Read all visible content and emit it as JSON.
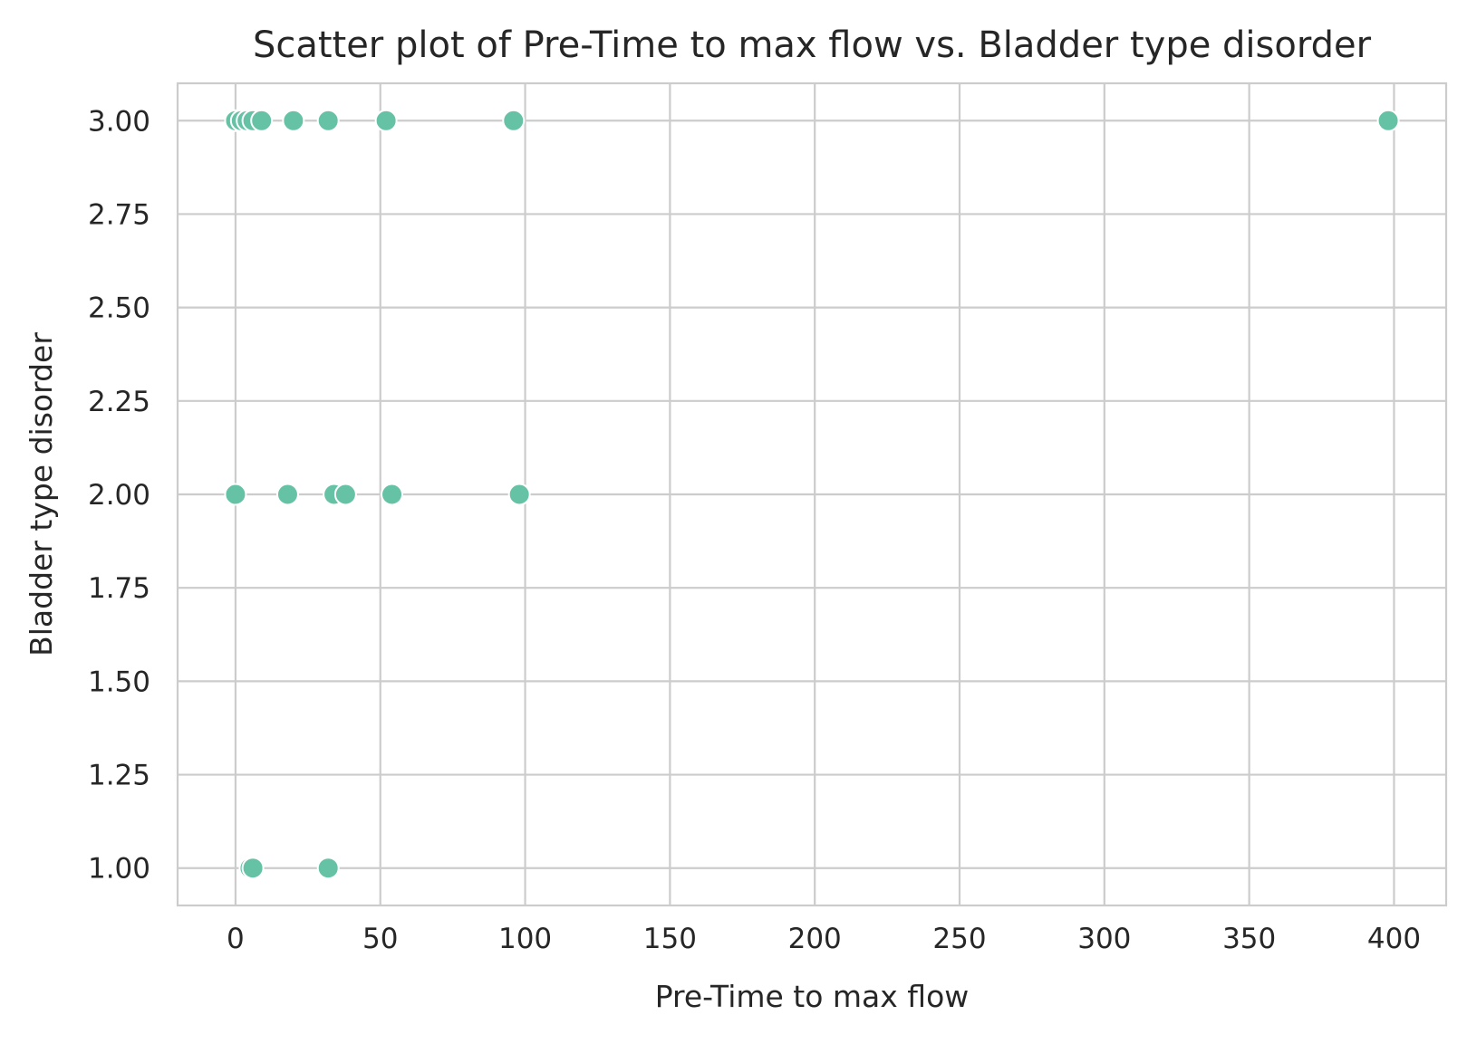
{
  "chart_data": {
    "type": "scatter",
    "title": "Scatter plot of Pre-Time to max flow vs. Bladder type disorder",
    "xlabel": "Pre-Time to max flow",
    "ylabel": "Bladder type disorder",
    "xlim": [
      -20,
      418
    ],
    "ylim": [
      0.9,
      3.1
    ],
    "xticks": [
      0,
      50,
      100,
      150,
      200,
      250,
      300,
      350,
      400
    ],
    "xtick_labels": [
      "0",
      "50",
      "100",
      "150",
      "200",
      "250",
      "300",
      "350",
      "400"
    ],
    "yticks": [
      1.0,
      1.25,
      1.5,
      1.75,
      2.0,
      2.25,
      2.5,
      2.75,
      3.0
    ],
    "ytick_labels": [
      "1.00",
      "1.25",
      "1.50",
      "1.75",
      "2.00",
      "2.25",
      "2.50",
      "2.75",
      "3.00"
    ],
    "grid": true,
    "marker_color": "#66c2a5",
    "marker_edge_color": "#ffffff",
    "points": [
      {
        "x": 0,
        "y": 3
      },
      {
        "x": 2,
        "y": 3
      },
      {
        "x": 4,
        "y": 3
      },
      {
        "x": 6,
        "y": 3
      },
      {
        "x": 9,
        "y": 3
      },
      {
        "x": 20,
        "y": 3
      },
      {
        "x": 32,
        "y": 3
      },
      {
        "x": 52,
        "y": 3
      },
      {
        "x": 96,
        "y": 3
      },
      {
        "x": 398,
        "y": 3
      },
      {
        "x": 0,
        "y": 2
      },
      {
        "x": 18,
        "y": 2
      },
      {
        "x": 34,
        "y": 2
      },
      {
        "x": 38,
        "y": 2
      },
      {
        "x": 54,
        "y": 2
      },
      {
        "x": 98,
        "y": 2
      },
      {
        "x": 5,
        "y": 1
      },
      {
        "x": 6,
        "y": 1
      },
      {
        "x": 32,
        "y": 1
      }
    ]
  }
}
